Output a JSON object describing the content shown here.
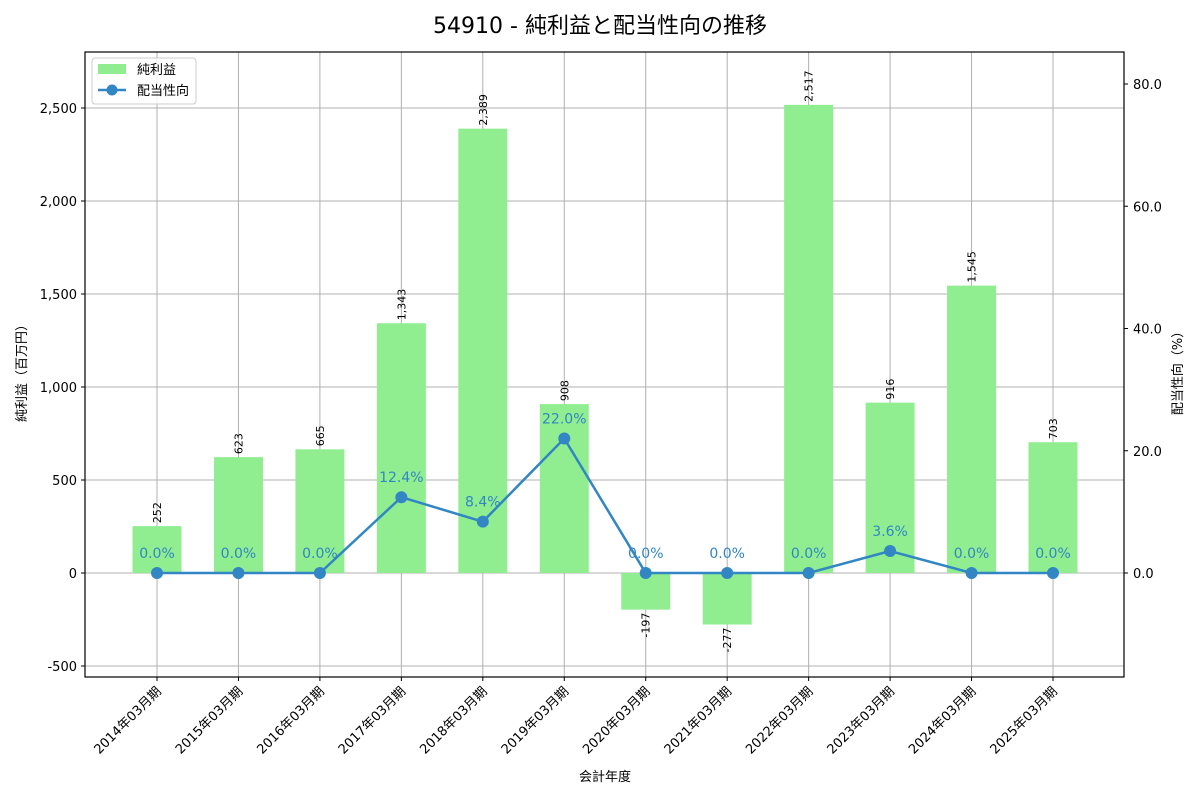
{
  "title": "54910 - 純利益と配当性向の推移",
  "colors": {
    "bar": "#90ee90",
    "line": "#3186c3",
    "grid": "#b0b0b0",
    "axis": "#000000"
  },
  "legend": {
    "items": [
      {
        "label": "純利益",
        "type": "bar"
      },
      {
        "label": "配当性向",
        "type": "line"
      }
    ]
  },
  "chart_data": {
    "type": "bar+line",
    "title": "54910 - 純利益と配当性向の推移",
    "xlabel": "会計年度",
    "ylabel": "純利益（百万円）",
    "y2label": "配当性向（%）",
    "categories": [
      "2014年03月期",
      "2015年03月期",
      "2016年03月期",
      "2017年03月期",
      "2018年03月期",
      "2019年03月期",
      "2020年03月期",
      "2021年03月期",
      "2022年03月期",
      "2023年03月期",
      "2024年03月期",
      "2025年03月期"
    ],
    "series": [
      {
        "name": "純利益",
        "type": "bar",
        "axis": "left",
        "values": [
          252,
          623,
          665,
          1343,
          2389,
          908,
          -197,
          -277,
          2517,
          916,
          1545,
          703
        ],
        "labels": [
          "252",
          "623",
          "665",
          "1,343",
          "2,389",
          "908",
          "-197",
          "-277",
          "2,517",
          "916",
          "1,545",
          "703"
        ]
      },
      {
        "name": "配当性向",
        "type": "line",
        "axis": "right",
        "values": [
          0.0,
          0.0,
          0.0,
          12.4,
          8.4,
          22.0,
          0.0,
          0.0,
          0.0,
          3.6,
          0.0,
          0.0
        ],
        "labels": [
          "0.0%",
          "0.0%",
          "0.0%",
          "12.4%",
          "8.4%",
          "22.0%",
          "0.0%",
          "0.0%",
          "0.0%",
          "3.6%",
          "0.0%",
          "0.0%"
        ]
      }
    ],
    "ylim": [
      -560,
      2800
    ],
    "y2lim": [
      -17.1,
      85.1
    ],
    "yticks": [
      -500,
      0,
      500,
      1000,
      1500,
      2000,
      2500
    ],
    "ytick_labels": [
      "-500",
      "0",
      "500",
      "1,000",
      "1,500",
      "2,000",
      "2,500"
    ],
    "y2ticks": [
      0,
      20,
      40,
      60,
      80
    ],
    "y2tick_labels": [
      "0.0",
      "20.0",
      "40.0",
      "60.0",
      "80.0"
    ],
    "grid": true,
    "legend_position": "upper left"
  }
}
